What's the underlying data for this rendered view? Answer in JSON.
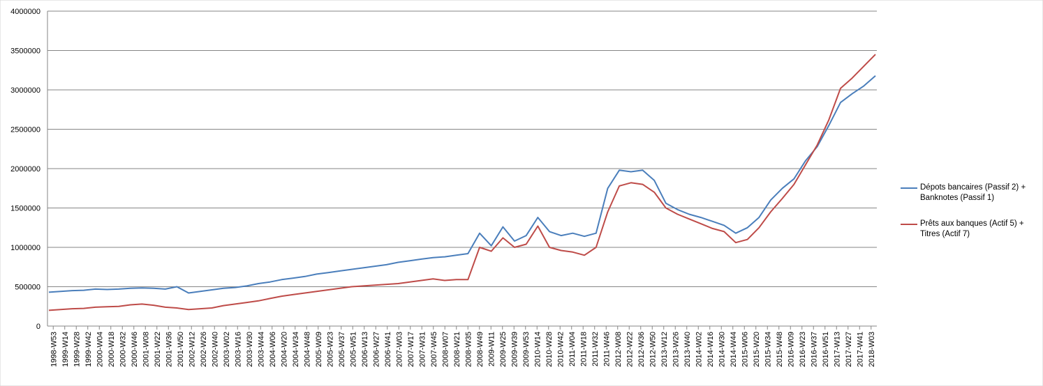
{
  "chart_data": {
    "type": "line",
    "title": "",
    "xlabel": "",
    "ylabel": "",
    "ylim": [
      0,
      4000000
    ],
    "yticks": [
      0,
      500000,
      1000000,
      1500000,
      2000000,
      2500000,
      3000000,
      3500000,
      4000000
    ],
    "grid": "horizontal",
    "legend": "right",
    "xlabels": [
      "1998-W53",
      "1999-W14",
      "1999-W28",
      "1999-W42",
      "2000-W04",
      "2000-W18",
      "2000-W32",
      "2000-W46",
      "2001-W08",
      "2001-W22",
      "2001-W36",
      "2001-W50",
      "2002-W12",
      "2002-W26",
      "2002-W40",
      "2003-W02",
      "2003-W16",
      "2003-W30",
      "2003-W44",
      "2004-W06",
      "2004-W20",
      "2004-W34",
      "2004-W48",
      "2005-W09",
      "2005-W23",
      "2005-W37",
      "2005-W51",
      "2006-W13",
      "2006-W27",
      "2006-W41",
      "2007-W03",
      "2007-W17",
      "2007-W31",
      "2007-W45",
      "2008-W07",
      "2008-W21",
      "2008-W35",
      "2008-W49",
      "2009-W11",
      "2009-W25",
      "2009-W39",
      "2009-W53",
      "2010-W14",
      "2010-W28",
      "2010-W42",
      "2011-W04",
      "2011-W18",
      "2011-W32",
      "2011-W46",
      "2012-W08",
      "2012-W22",
      "2012-W36",
      "2012-W50",
      "2013-W12",
      "2013-W26",
      "2013-W40",
      "2014-W02",
      "2014-W16",
      "2014-W30",
      "2014-W44",
      "2015-W06",
      "2015-W20",
      "2015-W34",
      "2015-W48",
      "2016-W09",
      "2016-W23",
      "2016-W37",
      "2016-W51",
      "2017-W13",
      "2017-W27",
      "2017-W41",
      "2018-W03"
    ],
    "series": [
      {
        "name": "Dépots bancaires (Passif 2) + Banknotes (Passif 1)",
        "color": "#4a7ebb",
        "values": [
          430000,
          440000,
          450000,
          455000,
          470000,
          465000,
          470000,
          480000,
          485000,
          480000,
          470000,
          500000,
          420000,
          440000,
          460000,
          480000,
          490000,
          510000,
          540000,
          560000,
          590000,
          610000,
          630000,
          660000,
          680000,
          700000,
          720000,
          740000,
          760000,
          780000,
          810000,
          830000,
          850000,
          870000,
          880000,
          900000,
          920000,
          1180000,
          1020000,
          1260000,
          1080000,
          1150000,
          1380000,
          1200000,
          1150000,
          1180000,
          1140000,
          1180000,
          1750000,
          1980000,
          1960000,
          1980000,
          1850000,
          1560000,
          1480000,
          1420000,
          1380000,
          1330000,
          1280000,
          1180000,
          1250000,
          1380000,
          1600000,
          1750000,
          1870000,
          2100000,
          2280000,
          2550000,
          2840000,
          2950000,
          3050000,
          3180000
        ]
      },
      {
        "name": "Prêts aux banques (Actif 5) + Titres (Actif 7)",
        "color": "#be4b48",
        "values": [
          200000,
          210000,
          220000,
          225000,
          240000,
          245000,
          250000,
          270000,
          280000,
          265000,
          240000,
          230000,
          210000,
          220000,
          230000,
          260000,
          280000,
          300000,
          320000,
          350000,
          380000,
          400000,
          420000,
          440000,
          460000,
          480000,
          500000,
          510000,
          520000,
          530000,
          540000,
          560000,
          580000,
          600000,
          580000,
          590000,
          590000,
          1000000,
          950000,
          1120000,
          1000000,
          1040000,
          1270000,
          1000000,
          960000,
          940000,
          900000,
          1000000,
          1450000,
          1780000,
          1820000,
          1800000,
          1700000,
          1500000,
          1420000,
          1360000,
          1300000,
          1240000,
          1200000,
          1060000,
          1100000,
          1250000,
          1450000,
          1620000,
          1800000,
          2050000,
          2300000,
          2620000,
          3020000,
          3150000,
          3300000,
          3450000
        ]
      }
    ]
  }
}
